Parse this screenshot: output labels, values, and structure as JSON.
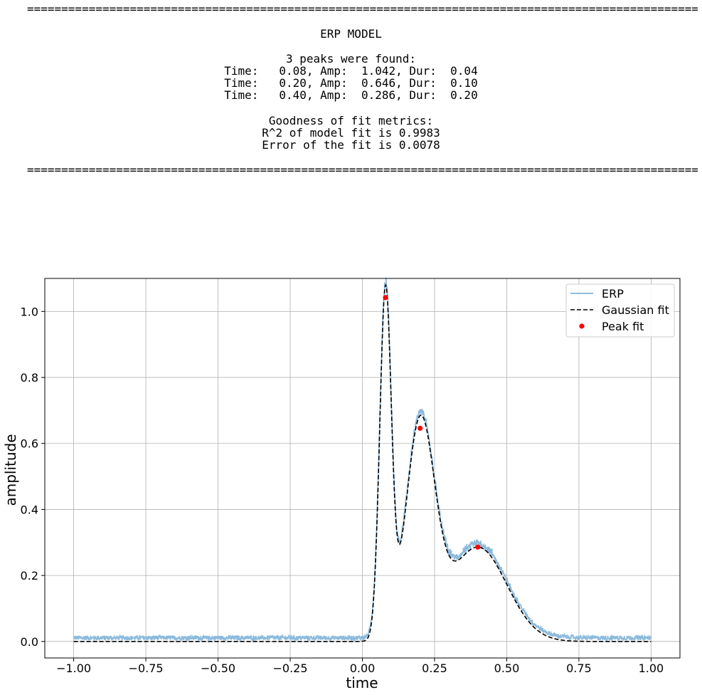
{
  "report": {
    "rule": "==================================================================================================",
    "title": "ERP MODEL",
    "peaks_header": "3 peaks were found:",
    "peaks": [
      "Time:   0.08, Amp:  1.042, Dur:  0.04",
      "Time:   0.20, Amp:  0.646, Dur:  0.10",
      "Time:   0.40, Amp:  0.286, Dur:  0.20"
    ],
    "metrics_header": "Goodness of fit metrics:",
    "metrics": [
      "R^2 of model fit is 0.9983",
      "Error of the fit is 0.0078"
    ]
  },
  "chart_data": {
    "type": "line",
    "xlabel": "time",
    "ylabel": "amplitude",
    "xlim": [
      -1.1,
      1.1
    ],
    "ylim": [
      -0.05,
      1.1
    ],
    "xticks": [
      -1.0,
      -0.75,
      -0.5,
      -0.25,
      0.0,
      0.25,
      0.5,
      0.75,
      1.0
    ],
    "xtick_labels": [
      "−1.00",
      "−0.75",
      "−0.50",
      "−0.25",
      "0.00",
      "0.25",
      "0.50",
      "0.75",
      "1.00"
    ],
    "yticks": [
      0.0,
      0.2,
      0.4,
      0.6,
      0.8,
      1.0
    ],
    "ytick_labels": [
      "0.0",
      "0.2",
      "0.4",
      "0.6",
      "0.8",
      "1.0"
    ],
    "grid": true,
    "legend_position": "top-right",
    "x_range": [
      -1.0,
      1.0
    ],
    "series": [
      {
        "name": "ERP",
        "kind": "noisy_line",
        "color": "#7fb2d8",
        "baseline_noise": 0.01
      },
      {
        "name": "Gaussian fit",
        "kind": "dashed_line",
        "color": "#000000",
        "components": [
          {
            "time": 0.08,
            "amp": 1.042,
            "dur": 0.04
          },
          {
            "time": 0.2,
            "amp": 0.646,
            "dur": 0.1
          },
          {
            "time": 0.4,
            "amp": 0.286,
            "dur": 0.2
          }
        ]
      },
      {
        "name": "Peak fit",
        "kind": "scatter",
        "color": "#ff0000",
        "points": [
          {
            "x": 0.08,
            "y": 1.042
          },
          {
            "x": 0.2,
            "y": 0.646
          },
          {
            "x": 0.4,
            "y": 0.286
          }
        ]
      }
    ]
  }
}
